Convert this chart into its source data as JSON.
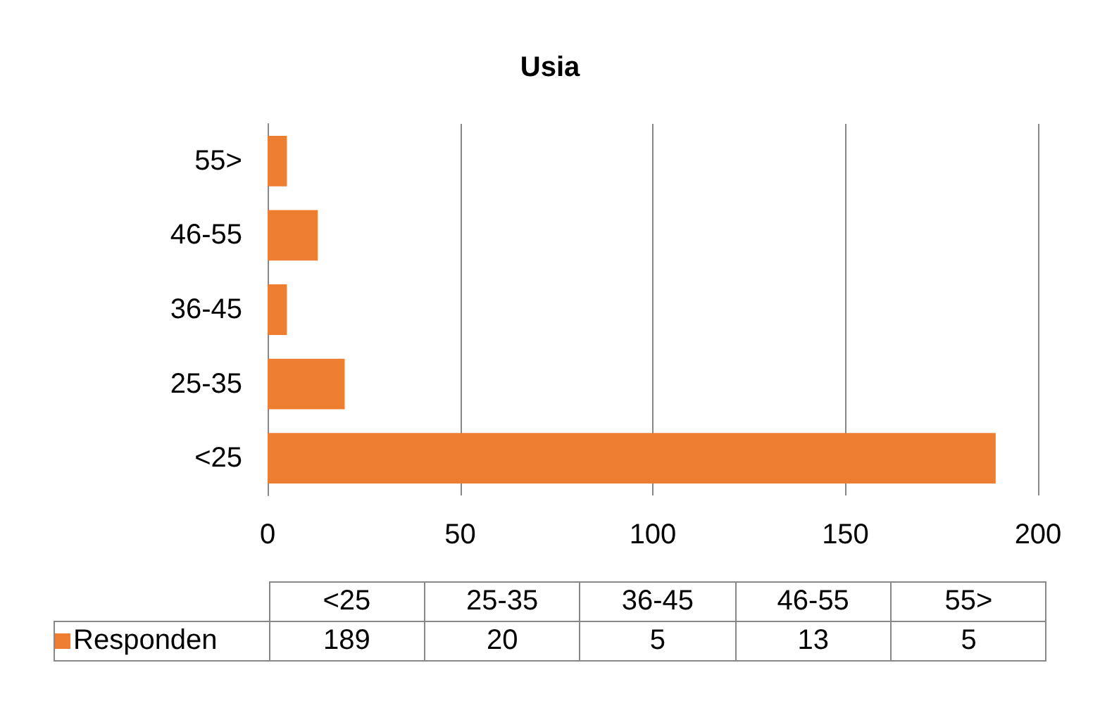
{
  "chart_data": [
    {
      "type": "bar",
      "title": "Usia",
      "orientation": "horizontal",
      "categories": [
        "55>",
        "46-55",
        "36-45",
        "25-35",
        "<25"
      ],
      "series": [
        {
          "color": "#ed7d31",
          "values": [
            5,
            13,
            5,
            20,
            189
          ]
        }
      ],
      "xlim": [
        0,
        200
      ],
      "xticks": [
        0,
        50,
        100,
        150,
        200
      ],
      "grid": "x"
    },
    {
      "type": "other",
      "categories": [
        "<25",
        "25-35",
        "36-45",
        "46-55",
        "55>"
      ],
      "series": [
        {
          "name": "Responden",
          "color": "#ed7d31",
          "values": [
            189,
            20,
            5,
            13,
            5
          ]
        }
      ],
      "legend": "left",
      "data_labels": true
    }
  ]
}
